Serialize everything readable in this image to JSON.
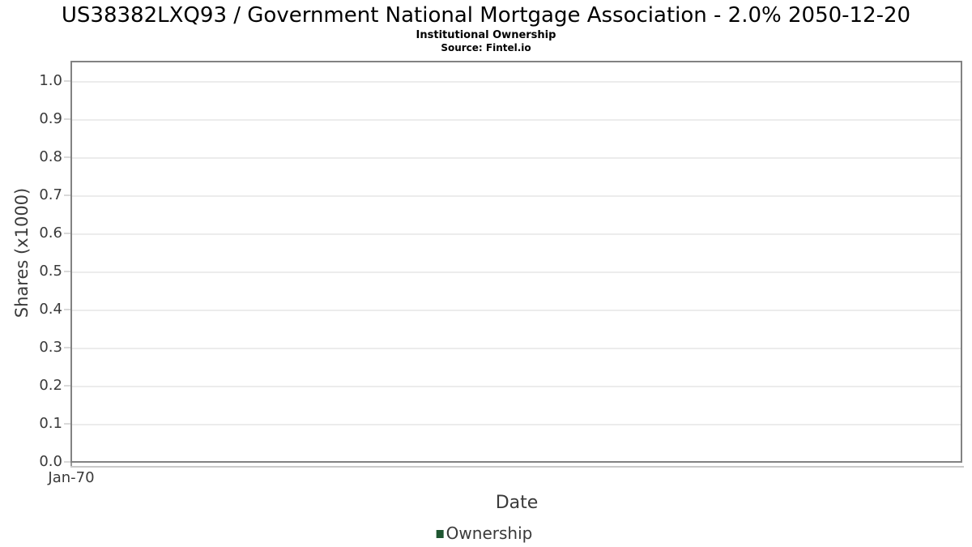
{
  "header": {
    "title": "US38382LXQ93 / Government National Mortgage Association - 2.0% 2050-12-20",
    "subtitle": "Institutional Ownership",
    "source": "Source: Fintel.io"
  },
  "chart_data": {
    "type": "line",
    "title": "US38382LXQ93 / Government National Mortgage Association - 2.0% 2050-12-20",
    "subtitle": "Institutional Ownership",
    "source": "Source: Fintel.io",
    "xlabel": "Date",
    "ylabel": "Shares (x1000)",
    "x_ticks": [
      "Jan-70"
    ],
    "y_ticks": [
      "0.0",
      "0.1",
      "0.2",
      "0.3",
      "0.4",
      "0.5",
      "0.6",
      "0.7",
      "0.8",
      "0.9",
      "1.0"
    ],
    "ylim": [
      0.0,
      1.05
    ],
    "grid": true,
    "legend_position": "bottom",
    "series": [
      {
        "name": "Ownership",
        "color": "#1e5631",
        "x": [],
        "y": []
      }
    ]
  },
  "colors": {
    "plot_border": "#828282",
    "gridline": "#ececec",
    "axis_text": "#3a3a3a",
    "legend_marker": "#1e5631"
  }
}
